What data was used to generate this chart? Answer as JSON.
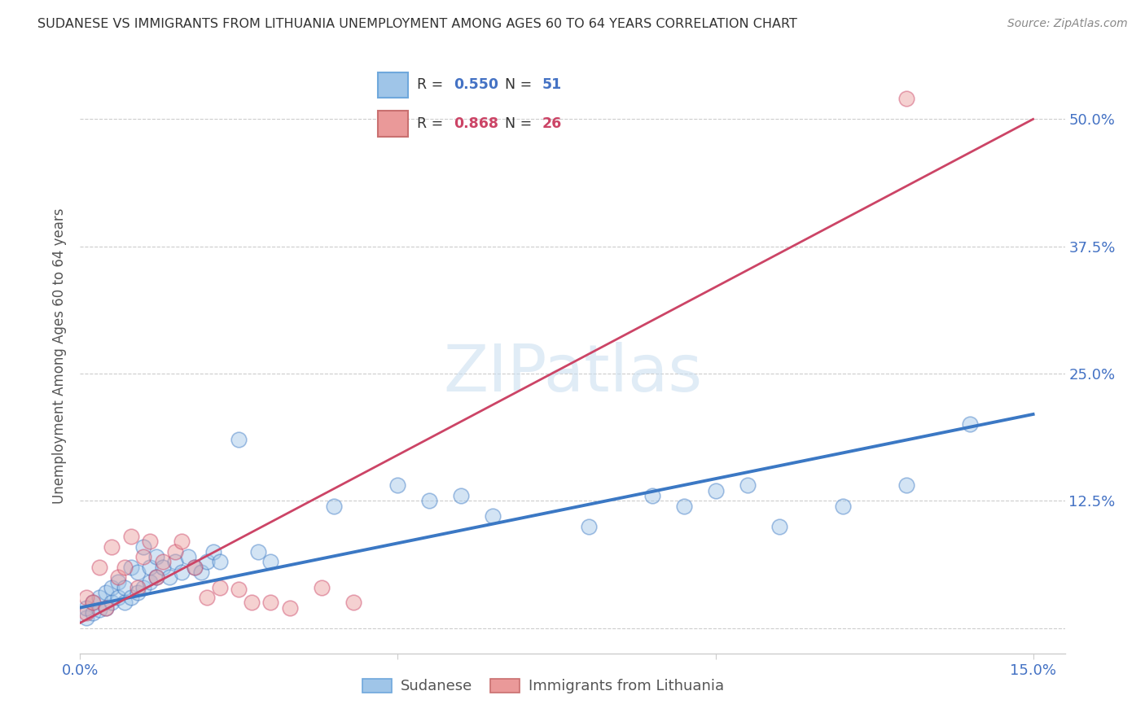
{
  "title": "SUDANESE VS IMMIGRANTS FROM LITHUANIA UNEMPLOYMENT AMONG AGES 60 TO 64 YEARS CORRELATION CHART",
  "source": "Source: ZipAtlas.com",
  "ylabel": "Unemployment Among Ages 60 to 64 years",
  "xlim": [
    0.0,
    0.155
  ],
  "ylim": [
    -0.025,
    0.56
  ],
  "xticks": [
    0.0,
    0.05,
    0.1,
    0.15
  ],
  "xticklabels": [
    "0.0%",
    "",
    "",
    "15.0%"
  ],
  "ytick_positions": [
    0.0,
    0.125,
    0.25,
    0.375,
    0.5
  ],
  "ytick_labels": [
    "",
    "12.5%",
    "25.0%",
    "37.5%",
    "50.0%"
  ],
  "legend_blue_R": "0.550",
  "legend_blue_N": "51",
  "legend_pink_R": "0.868",
  "legend_pink_N": "26",
  "blue_color": "#9fc5e8",
  "pink_color": "#ea9999",
  "blue_line_color": "#3b78c4",
  "pink_line_color": "#cc4466",
  "watermark": "ZIPatlas",
  "blue_scatter_x": [
    0.001,
    0.001,
    0.002,
    0.002,
    0.003,
    0.003,
    0.004,
    0.004,
    0.005,
    0.005,
    0.006,
    0.006,
    0.007,
    0.007,
    0.008,
    0.008,
    0.009,
    0.009,
    0.01,
    0.01,
    0.011,
    0.011,
    0.012,
    0.012,
    0.013,
    0.014,
    0.015,
    0.016,
    0.017,
    0.018,
    0.019,
    0.02,
    0.021,
    0.022,
    0.025,
    0.028,
    0.03,
    0.04,
    0.05,
    0.055,
    0.06,
    0.065,
    0.08,
    0.09,
    0.095,
    0.1,
    0.105,
    0.11,
    0.12,
    0.13,
    0.14
  ],
  "blue_scatter_y": [
    0.01,
    0.02,
    0.015,
    0.025,
    0.018,
    0.03,
    0.02,
    0.035,
    0.025,
    0.04,
    0.03,
    0.045,
    0.025,
    0.04,
    0.03,
    0.06,
    0.035,
    0.055,
    0.04,
    0.08,
    0.045,
    0.06,
    0.05,
    0.07,
    0.06,
    0.05,
    0.065,
    0.055,
    0.07,
    0.06,
    0.055,
    0.065,
    0.075,
    0.065,
    0.185,
    0.075,
    0.065,
    0.12,
    0.14,
    0.125,
    0.13,
    0.11,
    0.1,
    0.13,
    0.12,
    0.135,
    0.14,
    0.1,
    0.12,
    0.14,
    0.2
  ],
  "pink_scatter_x": [
    0.001,
    0.001,
    0.002,
    0.003,
    0.004,
    0.005,
    0.006,
    0.007,
    0.008,
    0.009,
    0.01,
    0.011,
    0.012,
    0.013,
    0.015,
    0.016,
    0.018,
    0.02,
    0.022,
    0.025,
    0.027,
    0.03,
    0.033,
    0.038,
    0.043,
    0.13
  ],
  "pink_scatter_y": [
    0.015,
    0.03,
    0.025,
    0.06,
    0.02,
    0.08,
    0.05,
    0.06,
    0.09,
    0.04,
    0.07,
    0.085,
    0.05,
    0.065,
    0.075,
    0.085,
    0.06,
    0.03,
    0.04,
    0.038,
    0.025,
    0.025,
    0.02,
    0.04,
    0.025,
    0.52
  ],
  "blue_trend_x": [
    0.0,
    0.15
  ],
  "blue_trend_y": [
    0.02,
    0.21
  ],
  "pink_trend_x": [
    0.0,
    0.15
  ],
  "pink_trend_y": [
    0.005,
    0.5
  ]
}
